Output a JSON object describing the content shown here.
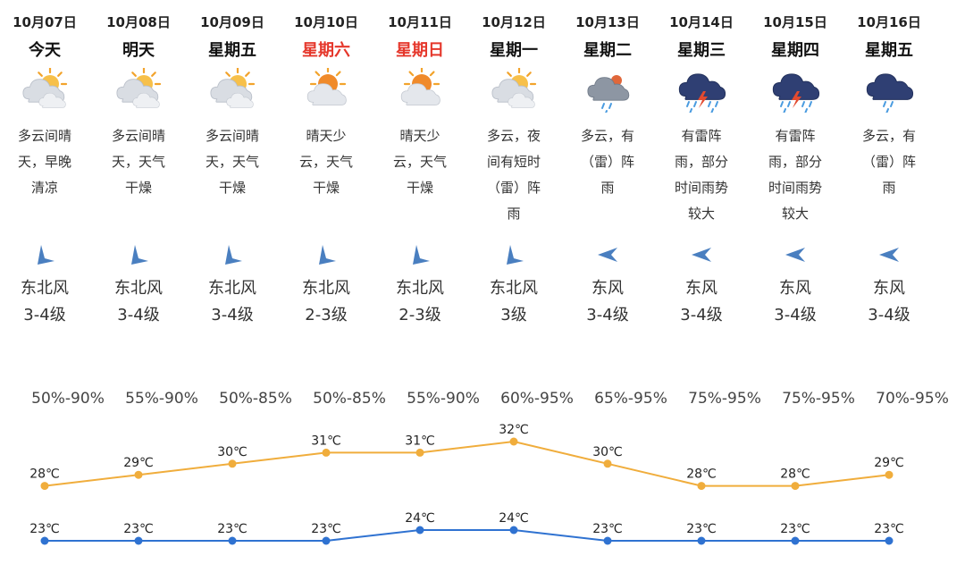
{
  "days": [
    {
      "date": "10月07日",
      "name": "今天",
      "weekend": false,
      "icon": "partly-cloudy-icon",
      "desc": [
        "多云间晴",
        "天，早晚",
        "清凉"
      ],
      "wind_dir": "东北风",
      "wind_level": "3-4级",
      "wind_icon": "wind-northeast-arrow-icon",
      "humidity": "50%-90%",
      "high": 28,
      "low": 23
    },
    {
      "date": "10月08日",
      "name": "明天",
      "weekend": false,
      "icon": "partly-cloudy-icon",
      "desc": [
        "多云间晴",
        "天，天气",
        "干燥"
      ],
      "wind_dir": "东北风",
      "wind_level": "3-4级",
      "wind_icon": "wind-northeast-arrow-icon",
      "humidity": "55%-90%",
      "high": 29,
      "low": 23
    },
    {
      "date": "10月09日",
      "name": "星期五",
      "weekend": false,
      "icon": "partly-cloudy-icon",
      "desc": [
        "多云间晴",
        "天，天气",
        "干燥"
      ],
      "wind_dir": "东北风",
      "wind_level": "3-4级",
      "wind_icon": "wind-northeast-arrow-icon",
      "humidity": "50%-85%",
      "high": 30,
      "low": 23
    },
    {
      "date": "10月10日",
      "name": "星期六",
      "weekend": true,
      "icon": "sunny-few-clouds-icon",
      "desc": [
        "晴天少",
        "云，天气",
        "干燥"
      ],
      "wind_dir": "东北风",
      "wind_level": "2-3级",
      "wind_icon": "wind-northeast-arrow-icon",
      "humidity": "50%-85%",
      "high": 31,
      "low": 23
    },
    {
      "date": "10月11日",
      "name": "星期日",
      "weekend": true,
      "icon": "sunny-few-clouds-icon",
      "desc": [
        "晴天少",
        "云，天气",
        "干燥"
      ],
      "wind_dir": "东北风",
      "wind_level": "2-3级",
      "wind_icon": "wind-northeast-arrow-icon",
      "humidity": "55%-90%",
      "high": 31,
      "low": 24
    },
    {
      "date": "10月12日",
      "name": "星期一",
      "weekend": false,
      "icon": "partly-cloudy-icon",
      "desc": [
        "多云，夜",
        "间有短时",
        "（雷）阵",
        "雨"
      ],
      "wind_dir": "东北风",
      "wind_level": "3级",
      "wind_icon": "wind-northeast-arrow-icon",
      "humidity": "60%-95%",
      "high": 32,
      "low": 24
    },
    {
      "date": "10月13日",
      "name": "星期二",
      "weekend": false,
      "icon": "cloudy-shower-icon",
      "desc": [
        "多云，有",
        "（雷）阵",
        "雨"
      ],
      "wind_dir": "东风",
      "wind_level": "3-4级",
      "wind_icon": "wind-east-arrow-icon",
      "humidity": "65%-95%",
      "high": 30,
      "low": 23
    },
    {
      "date": "10月14日",
      "name": "星期三",
      "weekend": false,
      "icon": "thunderstorm-icon",
      "desc": [
        "有雷阵",
        "雨，部分",
        "时间雨势",
        "较大"
      ],
      "wind_dir": "东风",
      "wind_level": "3-4级",
      "wind_icon": "wind-east-arrow-icon",
      "humidity": "75%-95%",
      "high": 28,
      "low": 23
    },
    {
      "date": "10月15日",
      "name": "星期四",
      "weekend": false,
      "icon": "thunderstorm-icon",
      "desc": [
        "有雷阵",
        "雨，部分",
        "时间雨势",
        "较大"
      ],
      "wind_dir": "东风",
      "wind_level": "3-4级",
      "wind_icon": "wind-east-arrow-icon",
      "humidity": "75%-95%",
      "high": 28,
      "low": 23
    },
    {
      "date": "10月16日",
      "name": "星期五",
      "weekend": false,
      "icon": "dark-cloud-rain-icon",
      "desc": [
        "多云，有",
        "（雷）阵",
        "雨"
      ],
      "wind_dir": "东风",
      "wind_level": "3-4级",
      "wind_icon": "wind-east-arrow-icon",
      "humidity": "70%-95%",
      "high": 29,
      "low": 23
    }
  ],
  "temp_unit": "℃",
  "colors": {
    "high_line": "#f0ad3c",
    "low_line": "#2f72d1",
    "weekend_text": "#e5372b",
    "wind_arrow": "#4a7fc0"
  },
  "chart_data": {
    "type": "line",
    "categories": [
      "10月07日",
      "10月08日",
      "10月09日",
      "10月10日",
      "10月11日",
      "10月12日",
      "10月13日",
      "10月14日",
      "10月15日",
      "10月16日"
    ],
    "series": [
      {
        "values": [
          28,
          29,
          30,
          31,
          31,
          32,
          30,
          28,
          28,
          29
        ]
      },
      {
        "values": [
          23,
          23,
          23,
          23,
          24,
          24,
          23,
          23,
          23,
          23
        ]
      }
    ],
    "ylim": [
      22,
      33
    ],
    "grid": false
  }
}
